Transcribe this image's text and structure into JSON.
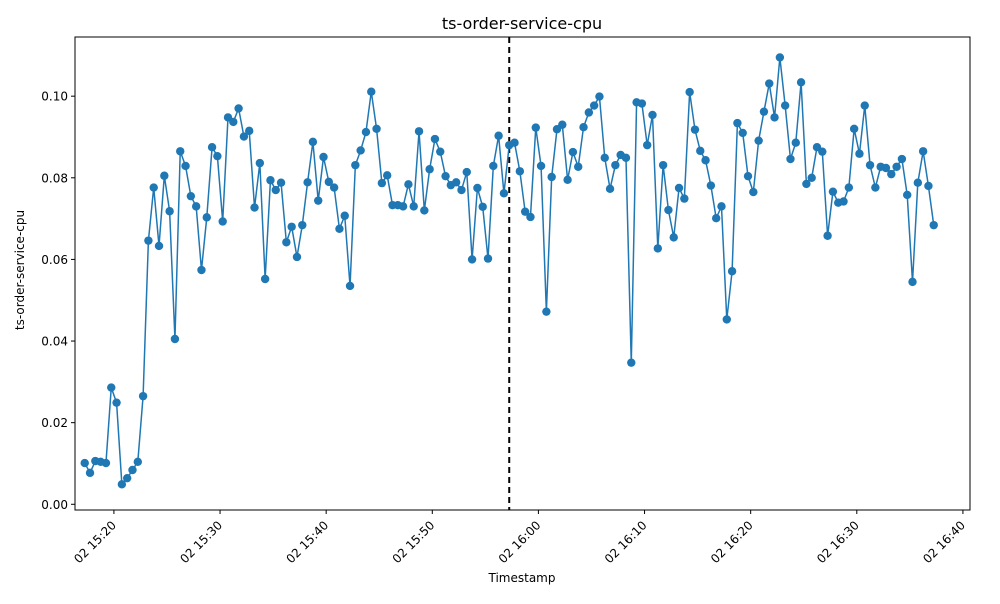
{
  "chart_data": {
    "type": "line",
    "title": "ts-order-service-cpu",
    "xlabel": "Timestamp",
    "ylabel": "ts-order-service-cpu",
    "x_tick_labels": [
      "02 15:20",
      "02 15:30",
      "02 15:40",
      "02 15:50",
      "02 16:00",
      "02 16:10",
      "02 16:20",
      "02 16:30",
      "02 16:40"
    ],
    "y_tick_labels": [
      "0.00",
      "0.02",
      "0.04",
      "0.06",
      "0.08",
      "0.10"
    ],
    "x_range": [
      "15:16:20",
      "16:40:40"
    ],
    "ylim": [
      -0.0014,
      0.1145
    ],
    "grid": false,
    "marker": "circle",
    "line_color": "#1f77b4",
    "vline": {
      "x": "15:57:15",
      "style": "dashed",
      "color": "#000000"
    },
    "series": [
      {
        "x": [
          "15:17:15",
          "15:17:45",
          "15:18:15",
          "15:18:45",
          "15:19:15",
          "15:19:45",
          "15:20:15",
          "15:20:45",
          "15:21:15",
          "15:21:45",
          "15:22:15",
          "15:22:45",
          "15:23:15",
          "15:23:45",
          "15:24:15",
          "15:24:45",
          "15:25:15",
          "15:25:45",
          "15:26:15",
          "15:26:45",
          "15:27:15",
          "15:27:45",
          "15:28:15",
          "15:28:45",
          "15:29:15",
          "15:29:45",
          "15:30:15",
          "15:30:45",
          "15:31:15",
          "15:31:45",
          "15:32:15",
          "15:32:45",
          "15:33:15",
          "15:33:45",
          "15:34:15",
          "15:34:45",
          "15:35:15",
          "15:35:45",
          "15:36:15",
          "15:36:45",
          "15:37:15",
          "15:37:45",
          "15:38:15",
          "15:38:45",
          "15:39:15",
          "15:39:45",
          "15:40:15",
          "15:40:45",
          "15:41:15",
          "15:41:45",
          "15:42:15",
          "15:42:45",
          "15:43:15",
          "15:43:45",
          "15:44:15",
          "15:44:45",
          "15:45:15",
          "15:45:45",
          "15:46:15",
          "15:46:45",
          "15:47:15",
          "15:47:45",
          "15:48:15",
          "15:48:45",
          "15:49:15",
          "15:49:45",
          "15:50:15",
          "15:50:45",
          "15:51:15",
          "15:51:45",
          "15:52:15",
          "15:52:45",
          "15:53:15",
          "15:53:45",
          "15:54:15",
          "15:54:45",
          "15:55:15",
          "15:55:45",
          "15:56:15",
          "15:56:45",
          "15:57:15",
          "15:57:45",
          "15:58:15",
          "15:58:45",
          "15:59:15",
          "15:59:45",
          "16:00:15",
          "16:00:45",
          "16:01:15",
          "16:01:45",
          "16:02:15",
          "16:02:45",
          "16:03:15",
          "16:03:45",
          "16:04:15",
          "16:04:45",
          "16:05:15",
          "16:05:45",
          "16:06:15",
          "16:06:45",
          "16:07:15",
          "16:07:45",
          "16:08:15",
          "16:08:45",
          "16:09:15",
          "16:09:45",
          "16:10:15",
          "16:10:45",
          "16:11:15",
          "16:11:45",
          "16:12:15",
          "16:12:45",
          "16:13:15",
          "16:13:45",
          "16:14:15",
          "16:14:45",
          "16:15:15",
          "16:15:45",
          "16:16:15",
          "16:16:45",
          "16:17:15",
          "16:17:45",
          "16:18:15",
          "16:18:45",
          "16:19:15",
          "16:19:45",
          "16:20:15",
          "16:20:45",
          "16:21:15",
          "16:21:45",
          "16:22:15",
          "16:22:45",
          "16:23:15",
          "16:23:45",
          "16:24:15",
          "16:24:45",
          "16:25:15",
          "16:25:45",
          "16:26:15",
          "16:26:45",
          "16:27:15",
          "16:27:45",
          "16:28:15",
          "16:28:45",
          "16:29:15",
          "16:29:45",
          "16:30:15",
          "16:30:45",
          "16:31:15",
          "16:31:45",
          "16:32:15",
          "16:32:45",
          "16:33:15",
          "16:33:45",
          "16:34:15",
          "16:34:45",
          "16:35:15",
          "16:35:45",
          "16:36:15",
          "16:36:45",
          "16:37:15"
        ],
        "values": [
          0.0101,
          0.0077,
          0.0106,
          0.0104,
          0.0101,
          0.0286,
          0.0249,
          0.0049,
          0.0064,
          0.0084,
          0.0104,
          0.0265,
          0.0646,
          0.0776,
          0.0633,
          0.0805,
          0.0718,
          0.0405,
          0.0865,
          0.0829,
          0.0755,
          0.073,
          0.0574,
          0.0703,
          0.0875,
          0.0853,
          0.0693,
          0.0948,
          0.0937,
          0.097,
          0.0901,
          0.0915,
          0.0727,
          0.0836,
          0.0552,
          0.0794,
          0.077,
          0.0788,
          0.0642,
          0.068,
          0.0606,
          0.0684,
          0.0789,
          0.0888,
          0.0744,
          0.0851,
          0.079,
          0.0776,
          0.0675,
          0.0707,
          0.0535,
          0.0831,
          0.0867,
          0.0912,
          0.1011,
          0.092,
          0.0787,
          0.0806,
          0.0733,
          0.0733,
          0.073,
          0.0784,
          0.073,
          0.0914,
          0.072,
          0.0821,
          0.0895,
          0.0864,
          0.0804,
          0.0782,
          0.0789,
          0.077,
          0.0814,
          0.06,
          0.0775,
          0.0729,
          0.0602,
          0.0829,
          0.0903,
          0.0762,
          0.088,
          0.0886,
          0.0816,
          0.0717,
          0.0704,
          0.0923,
          0.0829,
          0.0472,
          0.0802,
          0.0919,
          0.093,
          0.0795,
          0.0863,
          0.0827,
          0.0924,
          0.096,
          0.0977,
          0.0999,
          0.0849,
          0.0773,
          0.0831,
          0.0856,
          0.0849,
          0.0347,
          0.0985,
          0.0982,
          0.088,
          0.0954,
          0.0627,
          0.0831,
          0.0721,
          0.0654,
          0.0775,
          0.0749,
          0.101,
          0.0918,
          0.0866,
          0.0843,
          0.0781,
          0.0701,
          0.073,
          0.0453,
          0.0571,
          0.0934,
          0.091,
          0.0804,
          0.0765,
          0.0891,
          0.0962,
          0.1031,
          0.0948,
          0.1095,
          0.0977,
          0.0846,
          0.0886,
          0.1034,
          0.0785,
          0.08,
          0.0875,
          0.0864,
          0.0658,
          0.0766,
          0.0739,
          0.0742,
          0.0776,
          0.092,
          0.0859,
          0.0977,
          0.0831,
          0.0776,
          0.0827,
          0.0824,
          0.0809,
          0.0827,
          0.0846,
          0.0758,
          0.0545,
          0.0788,
          0.0865,
          0.078,
          0.0684
        ]
      }
    ]
  }
}
